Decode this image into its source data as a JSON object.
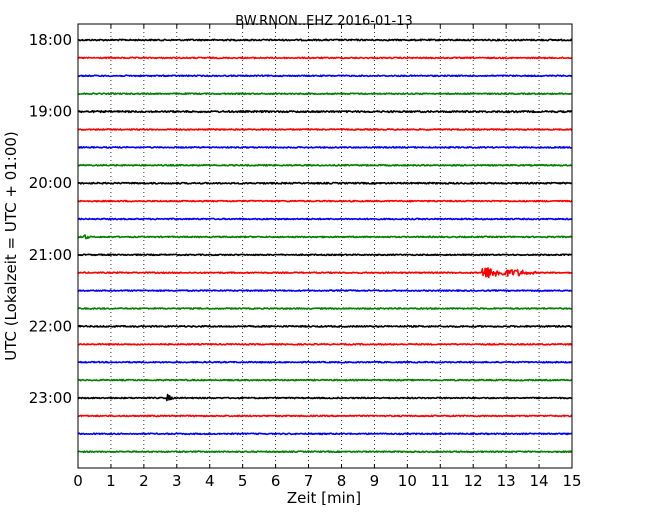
{
  "chart_data": {
    "type": "line",
    "title": "BW.RNON..EHZ 2016-01-13",
    "xlabel": "Zeit  [min]",
    "ylabel": "UTC (Lokalzeit = UTC + 01:00)",
    "xlim": [
      0,
      15
    ],
    "xticks": [
      "0",
      "1",
      "2",
      "3",
      "4",
      "5",
      "6",
      "7",
      "8",
      "9",
      "10",
      "11",
      "12",
      "13",
      "14",
      "15"
    ],
    "yticks": [
      {
        "label": "18:00",
        "row": 0
      },
      {
        "label": "19:00",
        "row": 4
      },
      {
        "label": "20:00",
        "row": 8
      },
      {
        "label": "21:00",
        "row": 12
      },
      {
        "label": "22:00",
        "row": 16
      },
      {
        "label": "23:00",
        "row": 20
      }
    ],
    "grid": "vertical dotted",
    "row_interval_minutes": 15,
    "row_colors": [
      "#000000",
      "#ff0000",
      "#0000ff",
      "#008000"
    ],
    "traces": [
      {
        "start": "18:00",
        "color": "#000000",
        "amplitude": 0.7
      },
      {
        "start": "18:15",
        "color": "#ff0000",
        "amplitude": 0.6
      },
      {
        "start": "18:30",
        "color": "#0000ff",
        "amplitude": 0.6
      },
      {
        "start": "18:45",
        "color": "#008000",
        "amplitude": 0.6
      },
      {
        "start": "19:00",
        "color": "#000000",
        "amplitude": 0.8
      },
      {
        "start": "19:15",
        "color": "#ff0000",
        "amplitude": 0.6
      },
      {
        "start": "19:30",
        "color": "#0000ff",
        "amplitude": 0.6
      },
      {
        "start": "19:45",
        "color": "#008000",
        "amplitude": 0.6
      },
      {
        "start": "20:00",
        "color": "#000000",
        "amplitude": 0.7
      },
      {
        "start": "20:15",
        "color": "#ff0000",
        "amplitude": 0.6
      },
      {
        "start": "20:30",
        "color": "#0000ff",
        "amplitude": 0.6
      },
      {
        "start": "20:45",
        "color": "#008000",
        "amplitude": 0.6,
        "event_minute": 0.2,
        "event_amplitude": 3
      },
      {
        "start": "21:00",
        "color": "#000000",
        "amplitude": 0.6
      },
      {
        "start": "21:15",
        "color": "#ff0000",
        "amplitude": 0.6,
        "event_minute": 12.3,
        "event_amplitude": 6,
        "event_duration": 1.6
      },
      {
        "start": "21:30",
        "color": "#0000ff",
        "amplitude": 0.6
      },
      {
        "start": "21:45",
        "color": "#008000",
        "amplitude": 0.6
      },
      {
        "start": "22:00",
        "color": "#000000",
        "amplitude": 0.7
      },
      {
        "start": "22:15",
        "color": "#ff0000",
        "amplitude": 0.6
      },
      {
        "start": "22:30",
        "color": "#0000ff",
        "amplitude": 0.6
      },
      {
        "start": "22:45",
        "color": "#008000",
        "amplitude": 0.6
      },
      {
        "start": "23:00",
        "color": "#000000",
        "amplitude": 0.6,
        "event_minute": 2.75,
        "event_amplitude": 3
      },
      {
        "start": "23:15",
        "color": "#ff0000",
        "amplitude": 0.6
      },
      {
        "start": "23:30",
        "color": "#0000ff",
        "amplitude": 0.6
      },
      {
        "start": "23:45",
        "color": "#008000",
        "amplitude": 0.6
      }
    ]
  }
}
